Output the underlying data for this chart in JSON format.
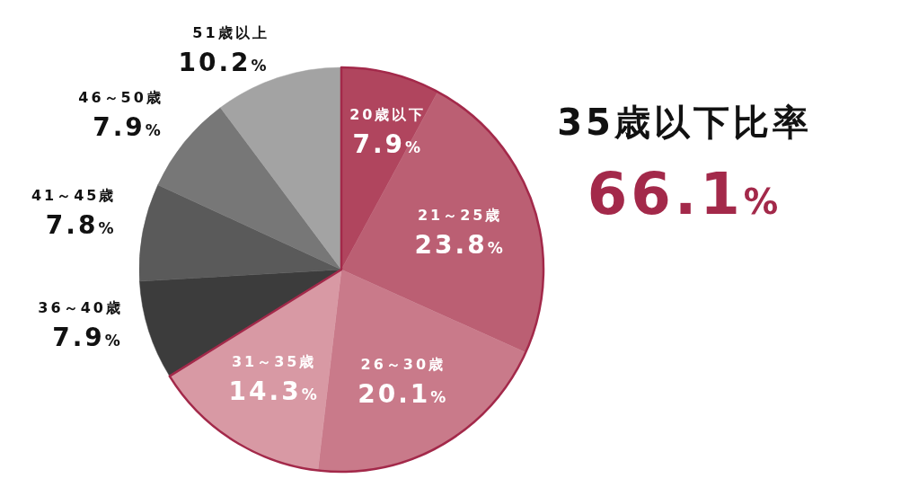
{
  "chart_data": {
    "type": "pie",
    "categories": [
      "20歳以下",
      "21～25歳",
      "26～30歳",
      "31～35歳",
      "36～40歳",
      "41～45歳",
      "46～50歳",
      "51歳以上"
    ],
    "values": [
      7.9,
      23.8,
      20.1,
      14.3,
      7.9,
      7.8,
      7.9,
      10.2
    ],
    "value_labels": [
      "7.9%",
      "23.8%",
      "20.1%",
      "14.3%",
      "7.9%",
      "7.8%",
      "7.9%",
      "10.2%"
    ],
    "colors": [
      "#b0455e",
      "#bb5f73",
      "#c97a8a",
      "#d899a4",
      "#3c3c3c",
      "#5a5a5a",
      "#777777",
      "#a3a3a3"
    ],
    "annotations": [
      "35歳以下比率",
      "66.1%"
    ],
    "legend": false
  }
}
